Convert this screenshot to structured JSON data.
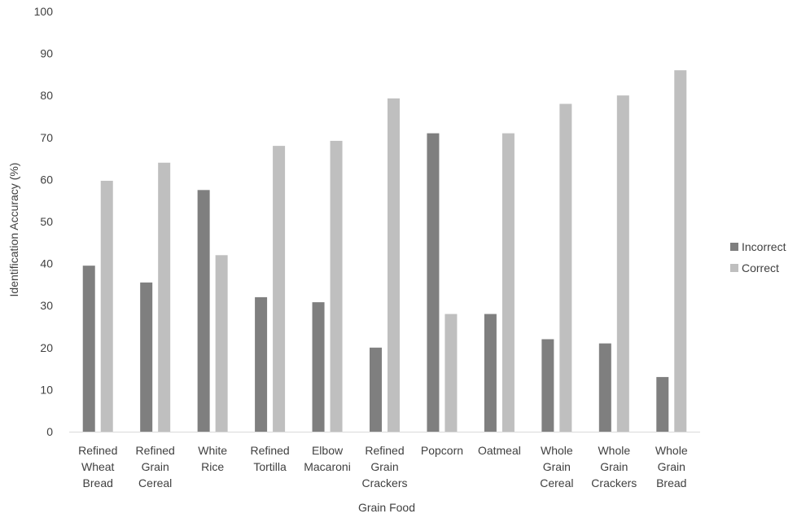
{
  "chart_data": {
    "type": "bar",
    "title": "",
    "xlabel": "Grain Food",
    "ylabel": "Identification Accuracy (%)",
    "ylim": [
      0,
      100
    ],
    "yticks": [
      0,
      10,
      20,
      30,
      40,
      50,
      60,
      70,
      80,
      90,
      100
    ],
    "grid": false,
    "legend_position": "right",
    "categories": [
      [
        "Refined",
        "Wheat",
        "Bread"
      ],
      [
        "Refined",
        "Grain",
        "Cereal"
      ],
      [
        "White",
        "Rice"
      ],
      [
        "Refined",
        "Tortilla"
      ],
      [
        "Elbow",
        "Macaroni"
      ],
      [
        "Refined",
        "Grain",
        "Crackers"
      ],
      [
        "Popcorn"
      ],
      [
        "Oatmeal"
      ],
      [
        "Whole",
        "Grain",
        "Cereal"
      ],
      [
        "Whole",
        "Grain",
        "Crackers"
      ],
      [
        "Whole",
        "Grain",
        "Bread"
      ]
    ],
    "series": [
      {
        "name": "Incorrect",
        "color": "#7f7f7f",
        "values": [
          39.5,
          35.5,
          57.5,
          32,
          30.8,
          20,
          71,
          28,
          22,
          21,
          13
        ]
      },
      {
        "name": "Correct",
        "color": "#bfbfbf",
        "values": [
          59.7,
          64,
          42,
          68,
          69.2,
          79.3,
          28,
          71,
          78,
          80,
          86
        ]
      }
    ]
  }
}
